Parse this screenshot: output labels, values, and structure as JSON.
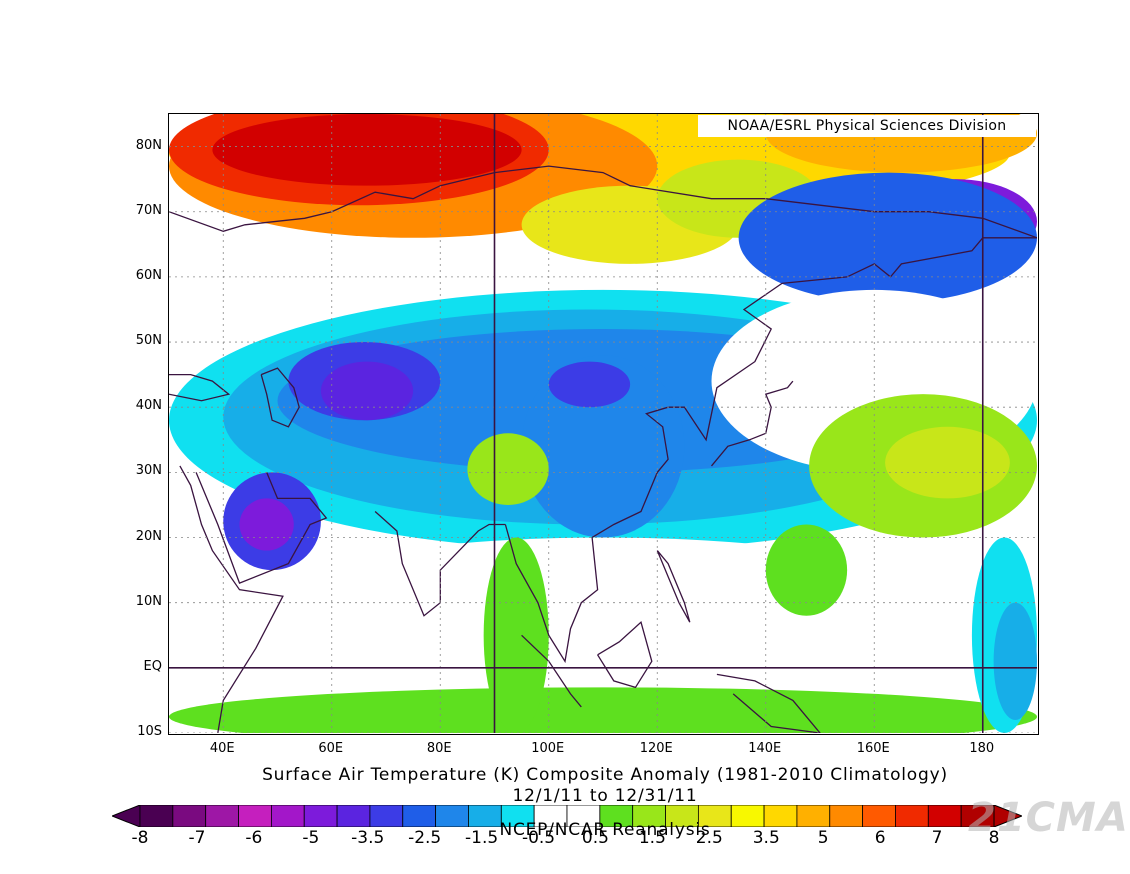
{
  "credit": "NOAA/ESRL Physical Sciences Division",
  "title": {
    "line1": "Surface Air Temperature (K) Composite Anomaly (1981-2010 Climatology)",
    "line2": "12/1/11  to 12/31/11",
    "source": "NCEP/NCAR Reanalysis"
  },
  "map": {
    "lon_range": [
      30,
      190
    ],
    "lat_range": [
      -10,
      85
    ],
    "lat_ticks": [
      "80N",
      "70N",
      "60N",
      "50N",
      "40N",
      "30N",
      "20N",
      "10N",
      "EQ",
      "10S"
    ],
    "lat_values": [
      80,
      70,
      60,
      50,
      40,
      30,
      20,
      10,
      0,
      -10
    ],
    "lon_ticks": [
      "40E",
      "60E",
      "80E",
      "100E",
      "120E",
      "140E",
      "160E",
      "180"
    ],
    "lon_values": [
      40,
      60,
      80,
      100,
      120,
      140,
      160,
      180
    ],
    "reference_lines": {
      "lon": [
        90,
        180
      ],
      "lat": [
        0
      ]
    },
    "land_outline_color": "#3a1440",
    "regions": [
      {
        "name": "warm-arctic-siberia",
        "level": 8,
        "lon": 60,
        "lat": 78,
        "rx": 28,
        "ry": 9
      },
      {
        "name": "warm-barents",
        "level": 7,
        "lon": 88,
        "lat": 72,
        "rx": 22,
        "ry": 8
      },
      {
        "name": "cold-central-asia",
        "level": -4,
        "lon": 65,
        "lat": 43,
        "rx": 16,
        "ry": 7
      },
      {
        "name": "cold-arabia",
        "level": -4,
        "lon": 48,
        "lat": 22,
        "rx": 9,
        "ry": 6
      },
      {
        "name": "cold-mongolia",
        "level": -3.5,
        "lon": 108,
        "lat": 43,
        "rx": 14,
        "ry": 6
      },
      {
        "name": "cold-south-china",
        "level": -3,
        "lon": 110,
        "lat": 24,
        "rx": 8,
        "ry": 5
      },
      {
        "name": "cold-east-siberia",
        "level": -5,
        "lon": 175,
        "lat": 70,
        "rx": 16,
        "ry": 6
      },
      {
        "name": "warm-tibet",
        "level": 1.5,
        "lon": 92,
        "lat": 32,
        "rx": 9,
        "ry": 5
      },
      {
        "name": "warm-north-pacific",
        "level": 2.5,
        "lon": 170,
        "lat": 32,
        "rx": 22,
        "ry": 9
      },
      {
        "name": "warm-indian-ocean",
        "level": 1,
        "lon": 95,
        "lat": 0,
        "rx": 18,
        "ry": 8
      },
      {
        "name": "cold-equatorial-pacific",
        "level": -1.5,
        "lon": 188,
        "lat": 0,
        "rx": 8,
        "ry": 12
      }
    ]
  },
  "colorbar": {
    "labels": [
      "-8",
      "-7",
      "-6",
      "-5",
      "-3.5",
      "-2.5",
      "-1.5",
      "-0.5",
      "0.5",
      "1.5",
      "2.5",
      "3.5",
      "5",
      "6",
      "7",
      "8"
    ],
    "colors": [
      "#4a0052",
      "#7a0a80",
      "#9e17a6",
      "#c51fbe",
      "#a317c9",
      "#7d1bdb",
      "#5b24e0",
      "#3c3ce6",
      "#1f5ee8",
      "#1f86ea",
      "#17aee8",
      "#10e0f0",
      "#ffffff",
      "#ffffff",
      "#5ee01f",
      "#99e61a",
      "#c8e619",
      "#e8e619",
      "#f8f800",
      "#ffd800",
      "#ffb000",
      "#ff8a00",
      "#ff5a00",
      "#f02a00",
      "#d20000",
      "#b00000"
    ]
  },
  "watermark": "21CMA"
}
